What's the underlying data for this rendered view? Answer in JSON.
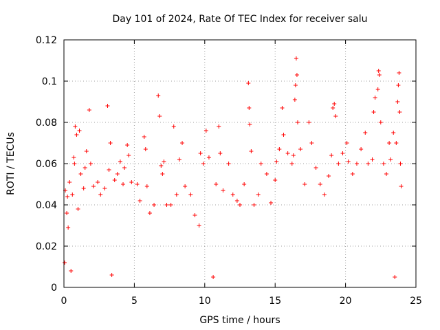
{
  "chart_data": {
    "type": "scatter",
    "title": "Day 101 of 2024, Rate Of TEC Index for receiver salu",
    "xlabel": "GPS time / hours",
    "ylabel": "ROTI / TECUs",
    "xlim": [
      0,
      25
    ],
    "ylim": [
      0,
      0.12
    ],
    "xticks": [
      0,
      5,
      10,
      15,
      20,
      25
    ],
    "xtick_labels": [
      "0",
      "5",
      "10",
      "15",
      "20",
      "25"
    ],
    "yticks": [
      0,
      0.02,
      0.04,
      0.06,
      0.08,
      0.1,
      0.12
    ],
    "ytick_labels": [
      "0",
      "0.02",
      "0.04",
      "0.06",
      "0.08",
      "0.1",
      "0.12"
    ],
    "grid": true,
    "marker": "plus",
    "series": [
      {
        "name": "ROTI",
        "color": "#ff0000",
        "points": [
          [
            0.05,
            0.012
          ],
          [
            0.1,
            0.047
          ],
          [
            0.2,
            0.036
          ],
          [
            0.25,
            0.044
          ],
          [
            0.3,
            0.029
          ],
          [
            0.4,
            0.051
          ],
          [
            0.5,
            0.008
          ],
          [
            0.6,
            0.045
          ],
          [
            0.7,
            0.063
          ],
          [
            0.75,
            0.06
          ],
          [
            0.8,
            0.078
          ],
          [
            0.9,
            0.074
          ],
          [
            1.0,
            0.038
          ],
          [
            1.1,
            0.076
          ],
          [
            1.2,
            0.055
          ],
          [
            1.4,
            0.048
          ],
          [
            1.5,
            0.058
          ],
          [
            1.6,
            0.066
          ],
          [
            1.8,
            0.086
          ],
          [
            1.9,
            0.06
          ],
          [
            2.1,
            0.049
          ],
          [
            2.4,
            0.051
          ],
          [
            2.6,
            0.045
          ],
          [
            2.9,
            0.048
          ],
          [
            3.1,
            0.088
          ],
          [
            3.2,
            0.057
          ],
          [
            3.3,
            0.07
          ],
          [
            3.4,
            0.006
          ],
          [
            3.6,
            0.052
          ],
          [
            3.8,
            0.055
          ],
          [
            4.0,
            0.061
          ],
          [
            4.2,
            0.05
          ],
          [
            4.3,
            0.058
          ],
          [
            4.5,
            0.069
          ],
          [
            4.6,
            0.064
          ],
          [
            4.8,
            0.051
          ],
          [
            5.2,
            0.05
          ],
          [
            5.4,
            0.042
          ],
          [
            5.7,
            0.073
          ],
          [
            5.8,
            0.067
          ],
          [
            5.9,
            0.049
          ],
          [
            6.1,
            0.036
          ],
          [
            6.4,
            0.04
          ],
          [
            6.7,
            0.093
          ],
          [
            6.8,
            0.083
          ],
          [
            6.9,
            0.059
          ],
          [
            7.0,
            0.055
          ],
          [
            7.1,
            0.061
          ],
          [
            7.3,
            0.04
          ],
          [
            7.6,
            0.04
          ],
          [
            7.8,
            0.078
          ],
          [
            8.0,
            0.045
          ],
          [
            8.2,
            0.062
          ],
          [
            8.4,
            0.07
          ],
          [
            8.6,
            0.049
          ],
          [
            9.0,
            0.045
          ],
          [
            9.3,
            0.035
          ],
          [
            9.6,
            0.03
          ],
          [
            9.7,
            0.065
          ],
          [
            9.9,
            0.06
          ],
          [
            10.1,
            0.076
          ],
          [
            10.3,
            0.063
          ],
          [
            10.6,
            0.005
          ],
          [
            10.8,
            0.05
          ],
          [
            11.0,
            0.078
          ],
          [
            11.1,
            0.065
          ],
          [
            11.3,
            0.047
          ],
          [
            11.7,
            0.06
          ],
          [
            12.0,
            0.045
          ],
          [
            12.3,
            0.042
          ],
          [
            12.5,
            0.04
          ],
          [
            12.8,
            0.05
          ],
          [
            13.1,
            0.099
          ],
          [
            13.15,
            0.087
          ],
          [
            13.2,
            0.079
          ],
          [
            13.3,
            0.066
          ],
          [
            13.5,
            0.04
          ],
          [
            13.8,
            0.045
          ],
          [
            14.0,
            0.06
          ],
          [
            14.4,
            0.055
          ],
          [
            14.7,
            0.041
          ],
          [
            15.0,
            0.052
          ],
          [
            15.1,
            0.061
          ],
          [
            15.3,
            0.067
          ],
          [
            15.5,
            0.087
          ],
          [
            15.6,
            0.074
          ],
          [
            15.9,
            0.065
          ],
          [
            16.2,
            0.06
          ],
          [
            16.3,
            0.064
          ],
          [
            16.4,
            0.091
          ],
          [
            16.45,
            0.098
          ],
          [
            16.5,
            0.111
          ],
          [
            16.55,
            0.103
          ],
          [
            16.6,
            0.08
          ],
          [
            16.8,
            0.067
          ],
          [
            17.1,
            0.05
          ],
          [
            17.4,
            0.08
          ],
          [
            17.6,
            0.07
          ],
          [
            17.9,
            0.058
          ],
          [
            18.2,
            0.05
          ],
          [
            18.5,
            0.045
          ],
          [
            18.8,
            0.054
          ],
          [
            19.0,
            0.064
          ],
          [
            19.1,
            0.087
          ],
          [
            19.2,
            0.089
          ],
          [
            19.3,
            0.083
          ],
          [
            19.5,
            0.06
          ],
          [
            19.8,
            0.065
          ],
          [
            20.1,
            0.07
          ],
          [
            20.2,
            0.061
          ],
          [
            20.5,
            0.055
          ],
          [
            20.8,
            0.06
          ],
          [
            21.1,
            0.067
          ],
          [
            21.4,
            0.075
          ],
          [
            21.6,
            0.06
          ],
          [
            21.9,
            0.062
          ],
          [
            22.0,
            0.085
          ],
          [
            22.1,
            0.092
          ],
          [
            22.3,
            0.096
          ],
          [
            22.35,
            0.105
          ],
          [
            22.4,
            0.103
          ],
          [
            22.5,
            0.08
          ],
          [
            22.7,
            0.06
          ],
          [
            22.9,
            0.055
          ],
          [
            23.1,
            0.07
          ],
          [
            23.2,
            0.062
          ],
          [
            23.4,
            0.075
          ],
          [
            23.5,
            0.005
          ],
          [
            23.6,
            0.07
          ],
          [
            23.7,
            0.09
          ],
          [
            23.75,
            0.098
          ],
          [
            23.8,
            0.104
          ],
          [
            23.85,
            0.085
          ],
          [
            23.9,
            0.06
          ],
          [
            23.95,
            0.049
          ]
        ]
      }
    ]
  }
}
